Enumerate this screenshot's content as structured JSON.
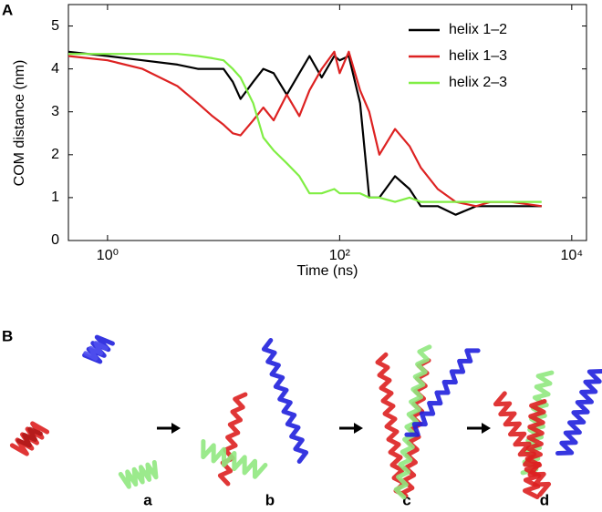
{
  "chart_data": {
    "type": "line",
    "xscale": "log",
    "x_label": "Time (ns)",
    "y_label": "COM distance (nm)",
    "x": [
      0.46,
      1,
      2,
      4,
      6,
      8,
      10,
      12,
      14,
      18,
      22,
      27,
      35,
      45,
      55,
      70,
      90,
      100,
      120,
      150,
      180,
      220,
      300,
      400,
      500,
      700,
      1000,
      1500,
      2000,
      3000,
      5500
    ],
    "series": [
      {
        "name": "helix 1–2",
        "color": "#000000",
        "values": [
          4.4,
          4.3,
          4.2,
          4.1,
          4.0,
          4.0,
          4.0,
          3.7,
          3.3,
          3.7,
          4.0,
          3.9,
          3.4,
          3.9,
          4.3,
          3.8,
          4.3,
          4.2,
          4.3,
          3.2,
          1.0,
          1.0,
          1.5,
          1.2,
          0.8,
          0.8,
          0.6,
          0.8,
          0.8,
          0.8,
          0.8
        ]
      },
      {
        "name": "helix 1–3",
        "color": "#dd2222",
        "values": [
          4.3,
          4.2,
          4.0,
          3.6,
          3.2,
          2.9,
          2.7,
          2.5,
          2.45,
          2.8,
          3.1,
          2.8,
          3.4,
          2.9,
          3.5,
          4.0,
          4.4,
          3.9,
          4.4,
          3.5,
          3.0,
          2.0,
          2.6,
          2.2,
          1.7,
          1.2,
          0.9,
          0.8,
          0.9,
          0.9,
          0.8
        ]
      },
      {
        "name": "helix 2–3",
        "color": "#80ee44",
        "values": [
          4.35,
          4.35,
          4.35,
          4.35,
          4.3,
          4.25,
          4.2,
          4.0,
          3.8,
          3.2,
          2.4,
          2.1,
          1.8,
          1.5,
          1.1,
          1.1,
          1.2,
          1.1,
          1.1,
          1.1,
          1.0,
          1.0,
          0.9,
          1.0,
          0.9,
          0.9,
          0.9,
          0.9,
          0.9,
          0.9,
          0.9
        ]
      }
    ],
    "xlim": [
      0.46,
      13400
    ],
    "xticks": [
      {
        "value": 1,
        "label": "10⁰"
      },
      {
        "value": 100,
        "label": "10²"
      },
      {
        "value": 10000,
        "label": "10⁴"
      }
    ],
    "ylim": [
      0,
      5.5
    ],
    "yticks": [
      0,
      1,
      2,
      3,
      4,
      5
    ],
    "grid": false,
    "legend": "upper right"
  },
  "panel_labels": [
    "A",
    "B"
  ],
  "snapshot_labels": [
    "a",
    "b",
    "c",
    "d"
  ]
}
